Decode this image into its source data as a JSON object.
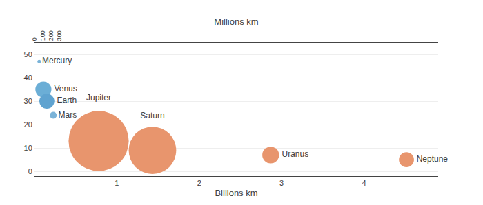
{
  "chart_data": {
    "type": "bubble",
    "labels": [
      "Mercury",
      "Venus",
      "Earth",
      "Mars",
      "Jupiter",
      "Saturn",
      "Uranus",
      "Neptune"
    ],
    "x": [
      0.057,
      0.108,
      0.15,
      0.228,
      0.779,
      1.432,
      2.867,
      4.515
    ],
    "values": [
      47,
      35,
      30,
      24,
      13,
      9,
      7,
      5
    ],
    "sizes": [
      15,
      320,
      280,
      60,
      4500,
      2800,
      350,
      280
    ],
    "colors": [
      "#7ab3d8",
      "#6baed6",
      "#5fa3d0",
      "#7ab3d8",
      "#e8956d",
      "#e8956d",
      "#e8956d",
      "#e8956d"
    ],
    "xlabel": "Billions km",
    "xlim": [
      0,
      4.9
    ],
    "xticks": [
      1,
      2,
      3,
      4
    ],
    "x2label": "Millions km",
    "x2lim": [
      0,
      4.9
    ],
    "x2ticks": [
      0,
      {
        "value": 0.1,
        "label": "100"
      },
      {
        "value": 0.2,
        "label": "200"
      },
      {
        "value": 0.3,
        "label": "300"
      }
    ],
    "ylim": [
      -2,
      55
    ],
    "yticks": [
      0,
      10,
      20,
      30,
      40,
      50
    ],
    "grid": true
  }
}
